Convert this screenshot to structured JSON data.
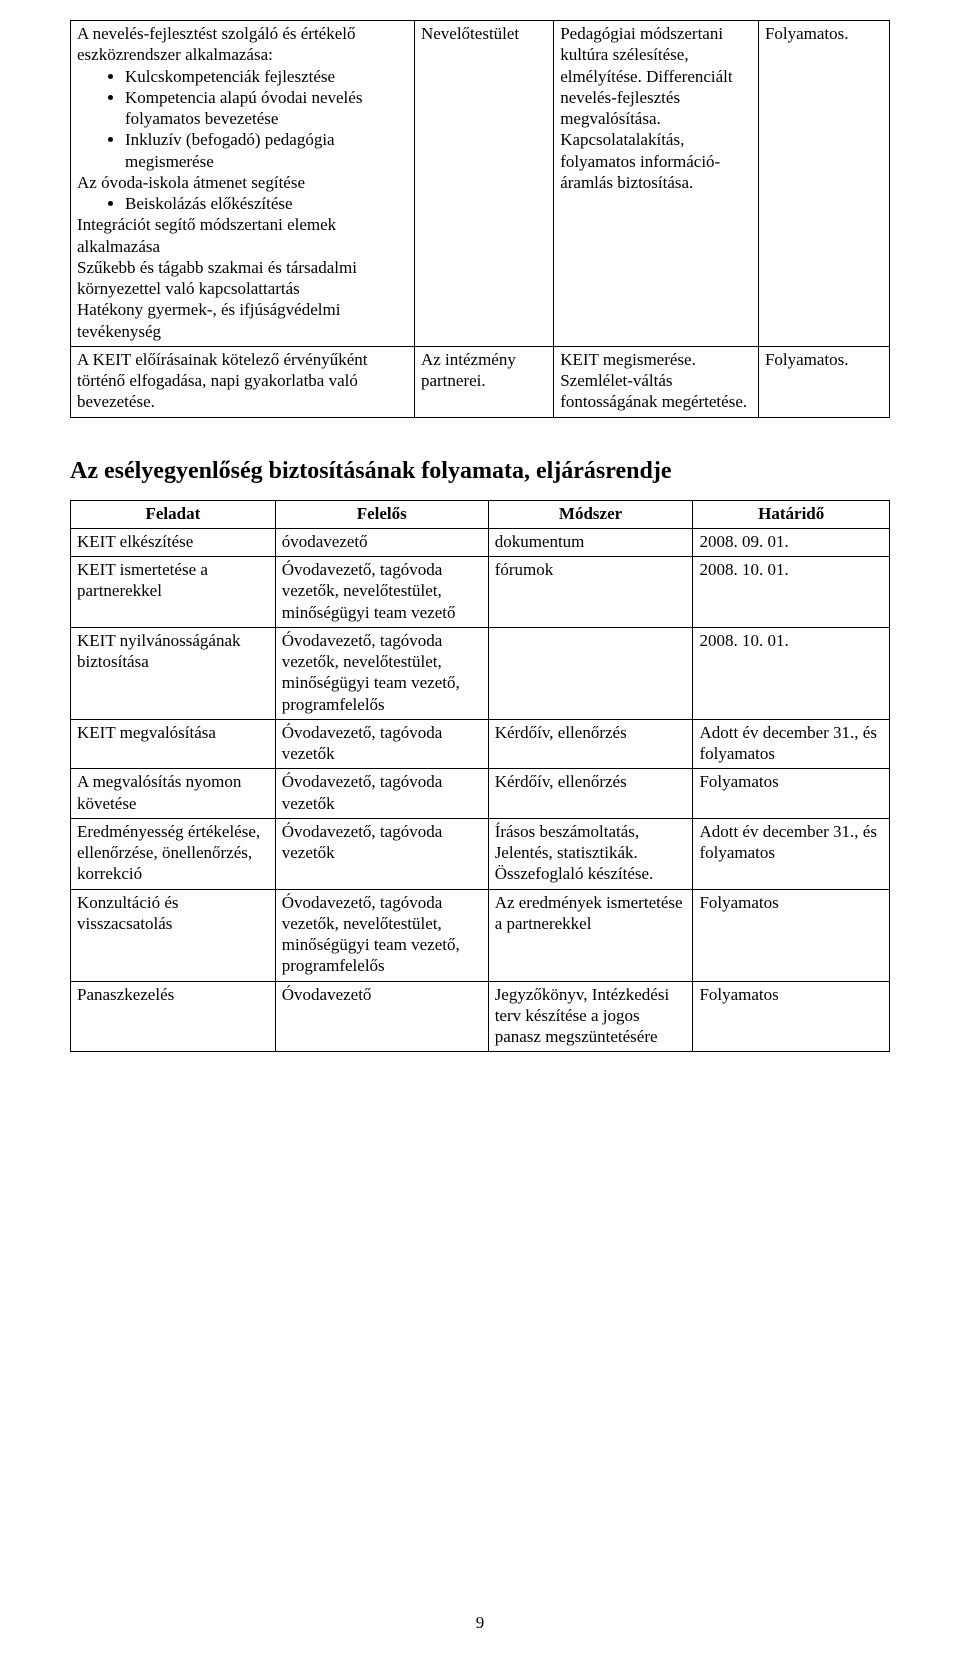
{
  "table1": {
    "row1": {
      "c1_intro": "A nevelés-fejlesztést szolgáló és értékelő eszközrendszer alkalmazása:",
      "c1_bullets": [
        "Kulcskompetenciák fejlesztése",
        "Kompetencia alapú óvodai nevelés folyamatos bevezetése",
        "Inkluzív (befogadó) pedagógia megismerése"
      ],
      "c1_mid": "Az óvoda-iskola átmenet segítése",
      "c1_bullets2": [
        "Beiskolázás előkészítése"
      ],
      "c1_tail_1": "Integrációt segítő módszertani elemek alkalmazása",
      "c1_tail_2": "Szűkebb és tágabb szakmai és társadalmi környezettel való kapcsolattartás",
      "c1_tail_3": "Hatékony gyermek-, és ifjúságvédelmi tevékenység",
      "c2": "Nevelőtestület",
      "c3": "Pedagógiai módszertani kultúra szélesítése, elmélyítése. Differenciált nevelés-fejlesztés megvalósítása. Kapcsolatalakítás, folyamatos információ-áramlás biztosítása.",
      "c4": "Folyamatos."
    },
    "row2": {
      "c1": "A KEIT előírásainak kötelező érvényűként történő elfogadása, napi gyakorlatba való bevezetése.",
      "c2": "Az intézmény partnerei.",
      "c3": "KEIT megismerése. Szemlélet-váltás fontosságának megértetése.",
      "c4": "Folyamatos."
    }
  },
  "heading": "Az esélyegyenlőség biztosításának folyamata, eljárásrendje",
  "table2": {
    "headers": [
      "Feladat",
      "Felelős",
      "Módszer",
      "Határidő"
    ],
    "rows": [
      [
        "KEIT elkészítése",
        "óvodavezető",
        "dokumentum",
        "2008. 09. 01."
      ],
      [
        "KEIT ismertetése a partnerekkel",
        "Óvodavezető, tagóvoda vezetők, nevelőtestület, minőségügyi team vezető",
        "fórumok",
        "2008. 10. 01."
      ],
      [
        "KEIT nyilvánosságának biztosítása",
        "Óvodavezető, tagóvoda vezetők, nevelőtestület, minőségügyi team vezető, programfelelős",
        "",
        "2008. 10. 01."
      ],
      [
        "KEIT megvalósítása",
        "Óvodavezető, tagóvoda vezetők",
        "Kérdőív, ellenőrzés",
        "Adott év december 31., és folyamatos"
      ],
      [
        "A megvalósítás nyomon követése",
        "Óvodavezető, tagóvoda vezetők",
        "Kérdőív, ellenőrzés",
        "Folyamatos"
      ],
      [
        "Eredményesség értékelése, ellenőrzése, önellenőrzés, korrekció",
        "Óvodavezető, tagóvoda vezetők",
        "Írásos beszámoltatás, Jelentés, statisztikák. Összefoglaló készítése.",
        "Adott év december 31., és folyamatos"
      ],
      [
        "Konzultáció és visszacsatolás",
        "Óvodavezető, tagóvoda vezetők, nevelőtestület, minőségügyi team vezető, programfelelős",
        "Az eredmények ismertetése a partnerekkel",
        "Folyamatos"
      ],
      [
        "Panaszkezelés",
        "Óvodavezető",
        "Jegyzőkönyv, Intézkedési terv készítése a jogos panasz megszüntetésére",
        "Folyamatos"
      ]
    ]
  },
  "page_number": "9"
}
